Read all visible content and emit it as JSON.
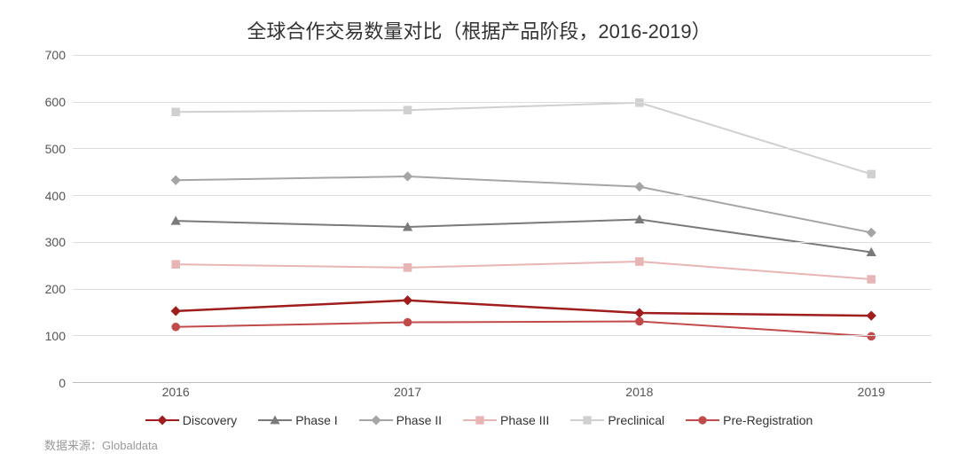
{
  "chart": {
    "type": "line",
    "title": "全球合作交易数量对比（根据产品阶段，2016-2019）",
    "title_fontsize": 22,
    "title_color": "#333333",
    "background_color": "#ffffff",
    "grid_color": "#dddddd",
    "axis_color": "#bbbbbb",
    "tick_color": "#555555",
    "tick_fontsize": 14,
    "ylim": [
      0,
      700
    ],
    "ytick_step": 100,
    "yticks": [
      0,
      100,
      200,
      300,
      400,
      500,
      600,
      700
    ],
    "categories": [
      "2016",
      "2017",
      "2018",
      "2019"
    ],
    "x_positions_pct": [
      12,
      39,
      66,
      93
    ],
    "series": [
      {
        "name": "Discovery",
        "color": "#9f1d1d",
        "marker": "diamond",
        "line_width": 2.5,
        "values": [
          152,
          175,
          148,
          142
        ]
      },
      {
        "name": "Phase I",
        "color": "#7a7a7a",
        "marker": "triangle",
        "line_width": 2,
        "values": [
          345,
          332,
          348,
          278
        ]
      },
      {
        "name": "Phase II",
        "color": "#a5a5a5",
        "marker": "diamond",
        "line_width": 2,
        "values": [
          432,
          440,
          418,
          320
        ]
      },
      {
        "name": "Phase III",
        "color": "#e8b5b5",
        "marker": "square",
        "line_width": 2,
        "values": [
          252,
          245,
          258,
          220
        ]
      },
      {
        "name": "Preclinical",
        "color": "#d0d0d0",
        "marker": "square",
        "line_width": 2,
        "values": [
          578,
          582,
          598,
          445
        ]
      },
      {
        "name": "Pre-Registration",
        "color": "#c14b4b",
        "marker": "circle",
        "line_width": 2,
        "values": [
          118,
          128,
          130,
          98
        ]
      }
    ],
    "legend_position": "bottom",
    "legend_fontsize": 14,
    "marker_size": 9
  },
  "source_label": "数据来源：Globaldata"
}
